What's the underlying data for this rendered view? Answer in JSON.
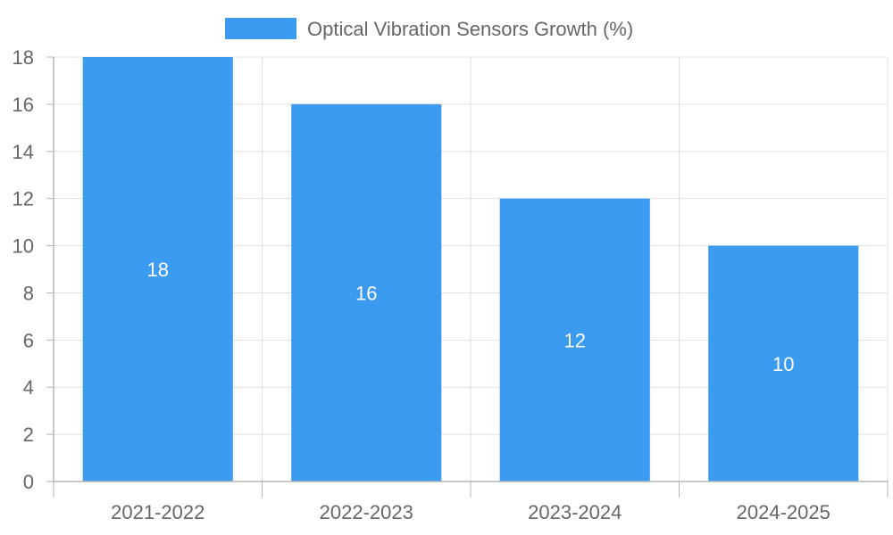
{
  "chart_data": {
    "type": "bar",
    "categories": [
      "2021-2022",
      "2022-2023",
      "2023-2024",
      "2024-2025"
    ],
    "series": [
      {
        "name": "Optical Vibration Sensors Growth (%)",
        "values": [
          18,
          16,
          12,
          10
        ],
        "data_labels": [
          "18",
          "16",
          "12",
          "10"
        ]
      }
    ],
    "ylim": [
      0,
      18
    ],
    "yticks": [
      0,
      2,
      4,
      6,
      8,
      10,
      12,
      14,
      16,
      18
    ],
    "ytick_labels": [
      "0",
      "2",
      "4",
      "6",
      "8",
      "10",
      "12",
      "14",
      "16",
      "18"
    ],
    "grid": true,
    "legend_position": "top-center",
    "title": "",
    "xlabel": "",
    "ylabel": ""
  },
  "colors": {
    "bar": "#3a9bf1",
    "grid": "#e1e1e1",
    "axis": "#b5b5b5",
    "text": "#666666",
    "data_label": "#ffffff"
  }
}
